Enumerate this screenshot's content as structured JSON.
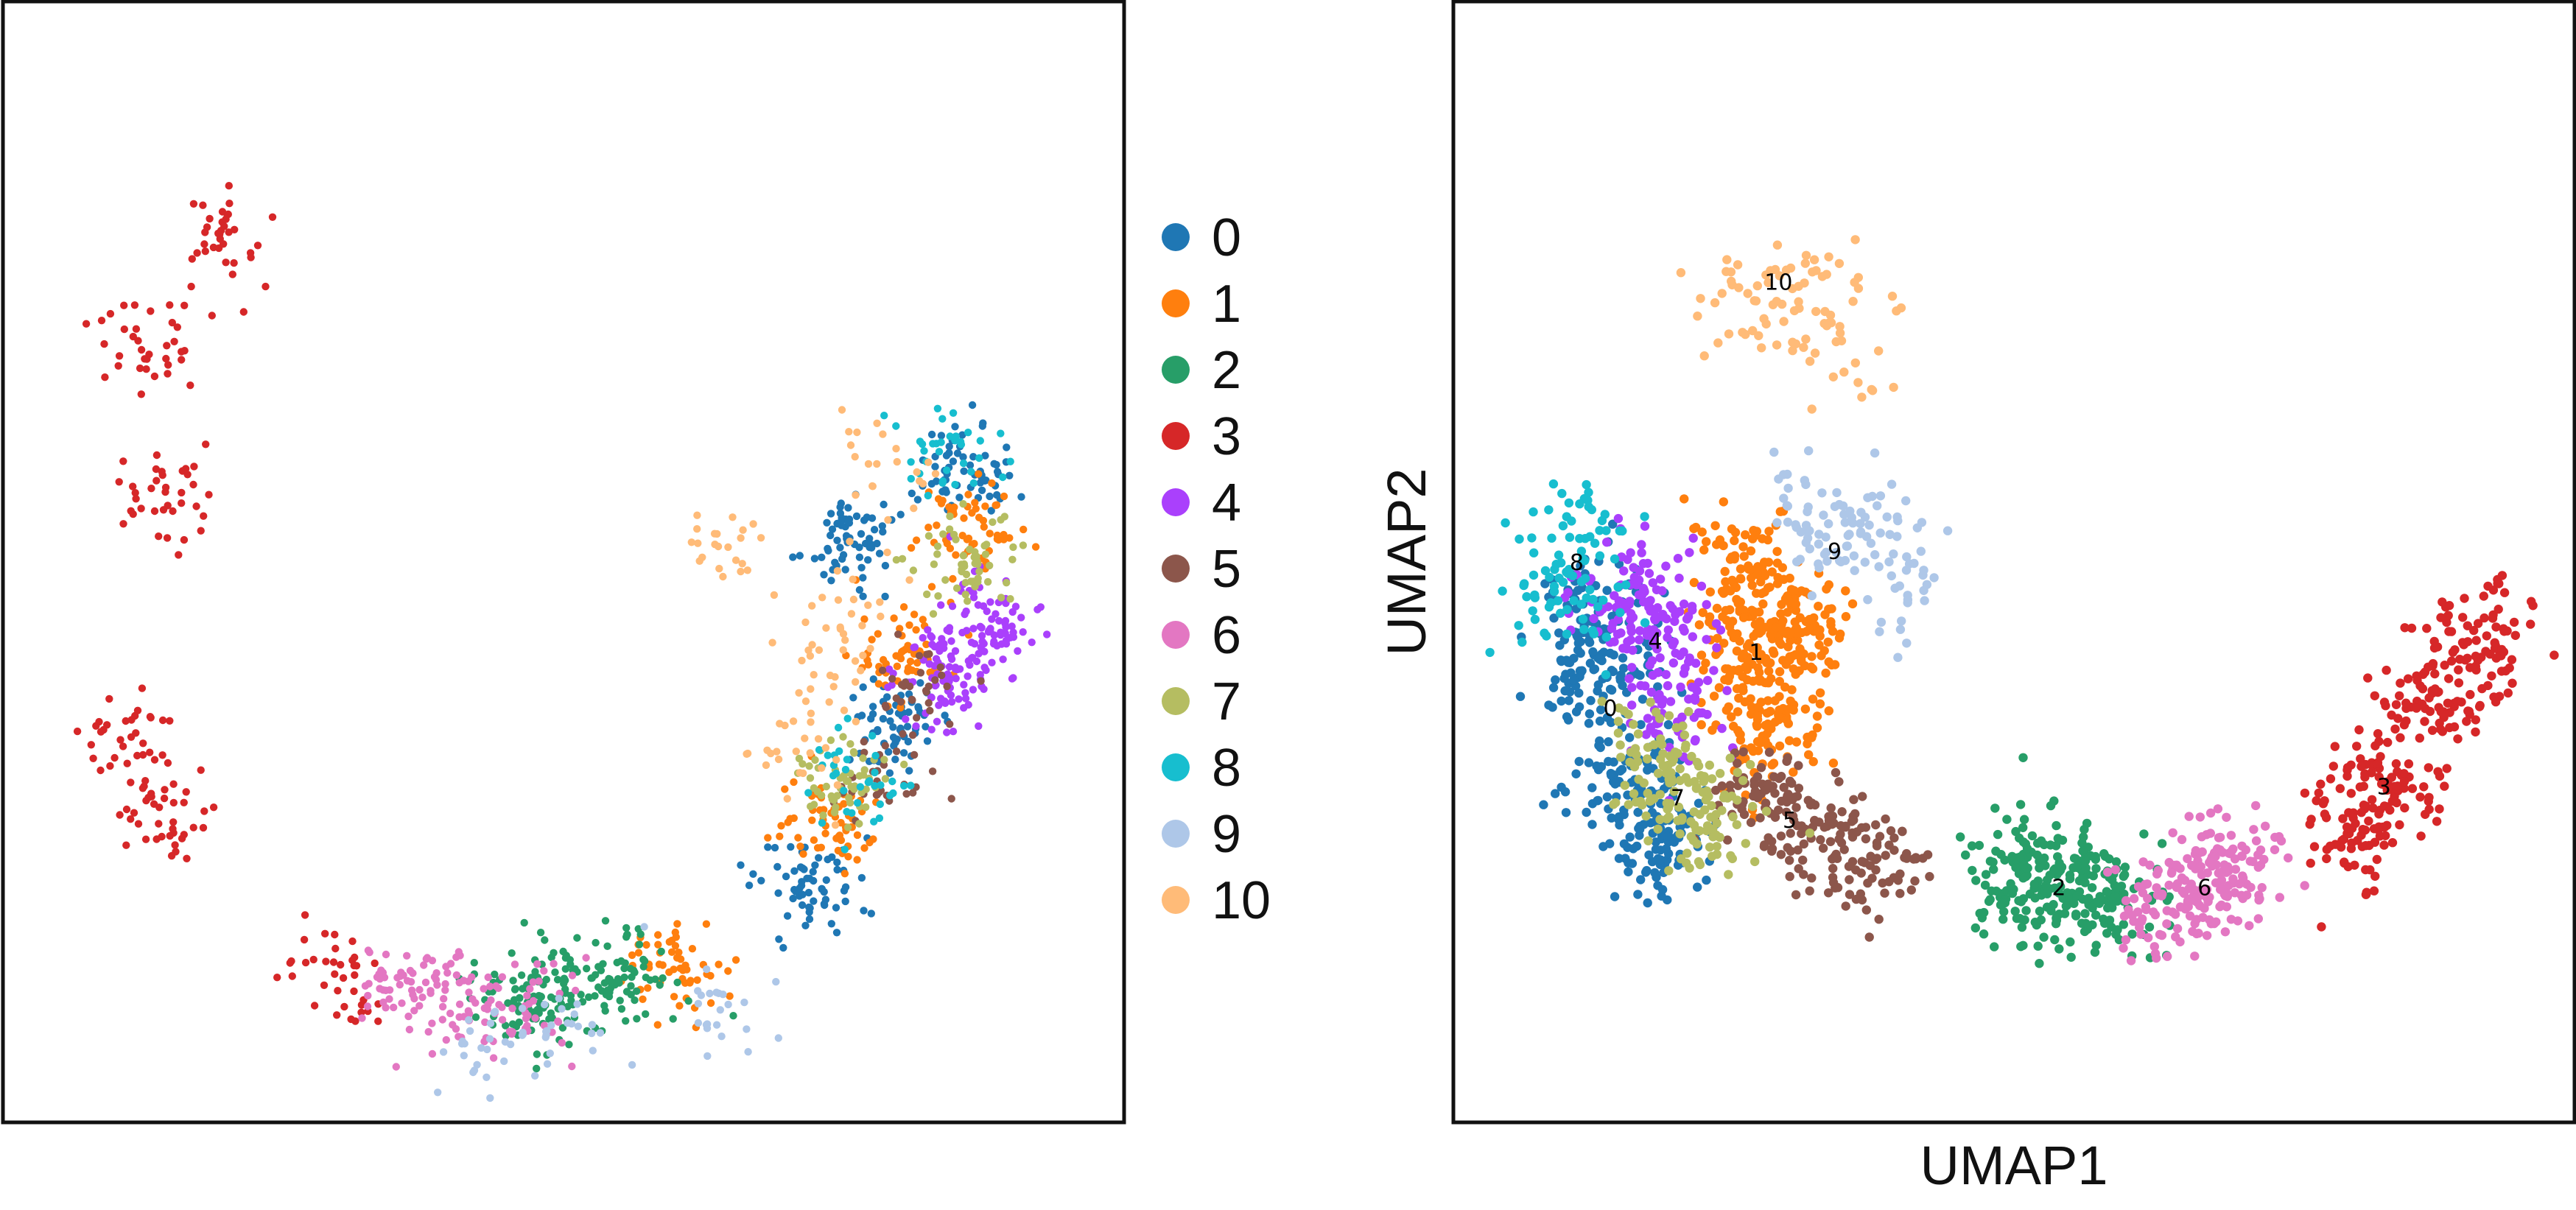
{
  "palette": {
    "0": "#1f77b4",
    "1": "#ff7f0e",
    "2": "#279e68",
    "3": "#d62728",
    "4": "#aa40fc",
    "5": "#8c564b",
    "6": "#e377c2",
    "7": "#b5bd61",
    "8": "#17becf",
    "9": "#aec7e8",
    "10": "#ffbb78"
  },
  "legend": {
    "entries": [
      "0",
      "1",
      "2",
      "3",
      "4",
      "5",
      "6",
      "7",
      "8",
      "9",
      "10"
    ]
  },
  "chart_data": [
    {
      "type": "scatter",
      "title": "",
      "xlabel": "",
      "ylabel": "",
      "xlim": [
        0,
        100
      ],
      "ylim": [
        0,
        100
      ],
      "ticks": "none",
      "description_series": "clusters drawn in an alternative embedding, arranged along a curved arc",
      "clusters": [
        {
          "name": "0",
          "centers": [
            [
              76,
              52
            ],
            [
              79,
              36
            ],
            [
              72,
              21
            ],
            [
              86,
              58
            ]
          ],
          "n": 260
        },
        {
          "name": "1",
          "centers": [
            [
              80,
              42
            ],
            [
              74,
              27
            ],
            [
              60,
              14
            ],
            [
              86,
              53
            ]
          ],
          "n": 230
        },
        {
          "name": "2",
          "centers": [
            [
              50,
              12
            ],
            [
              46,
              11
            ],
            [
              55,
              13
            ]
          ],
          "n": 190
        },
        {
          "name": "3",
          "centers": [
            [
              11,
              35
            ],
            [
              15,
              27
            ],
            [
              30,
              13
            ],
            [
              14,
              56
            ],
            [
              20,
              79
            ],
            [
              13,
              69
            ]
          ],
          "n": 220
        },
        {
          "name": "4",
          "centers": [
            [
              88,
              44
            ],
            [
              84,
              40
            ]
          ],
          "n": 160
        },
        {
          "name": "5",
          "centers": [
            [
              82,
              38
            ],
            [
              78,
              30
            ]
          ],
          "n": 60
        },
        {
          "name": "6",
          "centers": [
            [
              40,
              11
            ],
            [
              36,
              12
            ],
            [
              46,
              10
            ]
          ],
          "n": 140
        },
        {
          "name": "7",
          "centers": [
            [
              86,
              50
            ],
            [
              75,
              30
            ]
          ],
          "n": 110
        },
        {
          "name": "8",
          "centers": [
            [
              77,
              30
            ],
            [
              84,
              60
            ]
          ],
          "n": 70
        },
        {
          "name": "9",
          "centers": [
            [
              50,
              8
            ],
            [
              64,
              10
            ],
            [
              43,
              7
            ]
          ],
          "n": 70
        },
        {
          "name": "10",
          "centers": [
            [
              75,
              45
            ],
            [
              74,
              40
            ],
            [
              70,
              33
            ],
            [
              64,
              51
            ],
            [
              78,
              58
            ]
          ],
          "n": 110
        }
      ]
    },
    {
      "type": "scatter",
      "title": "",
      "xlabel": "UMAP1",
      "ylabel": "UMAP2",
      "xlim": [
        0,
        100
      ],
      "ylim": [
        0,
        100
      ],
      "ticks": "none",
      "clusters": [
        {
          "name": "0",
          "label_pos": [
            14,
            37
          ],
          "centers": [
            [
              13,
              40
            ],
            [
              15,
              30
            ],
            [
              18,
              25
            ],
            [
              12,
              45
            ]
          ],
          "n": 330
        },
        {
          "name": "1",
          "label_pos": [
            27,
            42
          ],
          "centers": [
            [
              27,
              42
            ],
            [
              26,
              49
            ],
            [
              28,
              35
            ],
            [
              31,
              44
            ]
          ],
          "n": 380
        },
        {
          "name": "2",
          "label_pos": [
            54,
            21
          ],
          "centers": [
            [
              54,
              21
            ],
            [
              50,
              22
            ],
            [
              58,
              20
            ]
          ],
          "n": 260
        },
        {
          "name": "3",
          "label_pos": [
            83,
            30
          ],
          "centers": [
            [
              83,
              30
            ],
            [
              80,
              26
            ],
            [
              88,
              38
            ],
            [
              92,
              43
            ]
          ],
          "n": 300
        },
        {
          "name": "4",
          "label_pos": [
            18,
            43
          ],
          "centers": [
            [
              18,
              44
            ],
            [
              20,
              37
            ],
            [
              16,
              47
            ]
          ],
          "n": 200
        },
        {
          "name": "5",
          "label_pos": [
            30,
            27
          ],
          "centers": [
            [
              30,
              27
            ],
            [
              34,
              25
            ],
            [
              38,
              23
            ],
            [
              27,
              30
            ]
          ],
          "n": 200
        },
        {
          "name": "6",
          "label_pos": [
            67,
            21
          ],
          "centers": [
            [
              67,
              21
            ],
            [
              70,
              23
            ],
            [
              63,
              20
            ]
          ],
          "n": 200
        },
        {
          "name": "7",
          "label_pos": [
            20,
            29
          ],
          "centers": [
            [
              20,
              29
            ],
            [
              23,
              26
            ],
            [
              18,
              33
            ]
          ],
          "n": 150
        },
        {
          "name": "8",
          "label_pos": [
            11,
            50
          ],
          "centers": [
            [
              11,
              52
            ],
            [
              10,
              47
            ]
          ],
          "n": 90
        },
        {
          "name": "9",
          "label_pos": [
            34,
            51
          ],
          "centers": [
            [
              34,
              51
            ],
            [
              37,
              53
            ],
            [
              31,
              54
            ],
            [
              40,
              48
            ]
          ],
          "n": 110
        },
        {
          "name": "10",
          "label_pos": [
            29,
            75
          ],
          "centers": [
            [
              29,
              76
            ],
            [
              33,
              73
            ],
            [
              25,
              72
            ],
            [
              34,
              68
            ]
          ],
          "n": 90
        }
      ]
    }
  ]
}
